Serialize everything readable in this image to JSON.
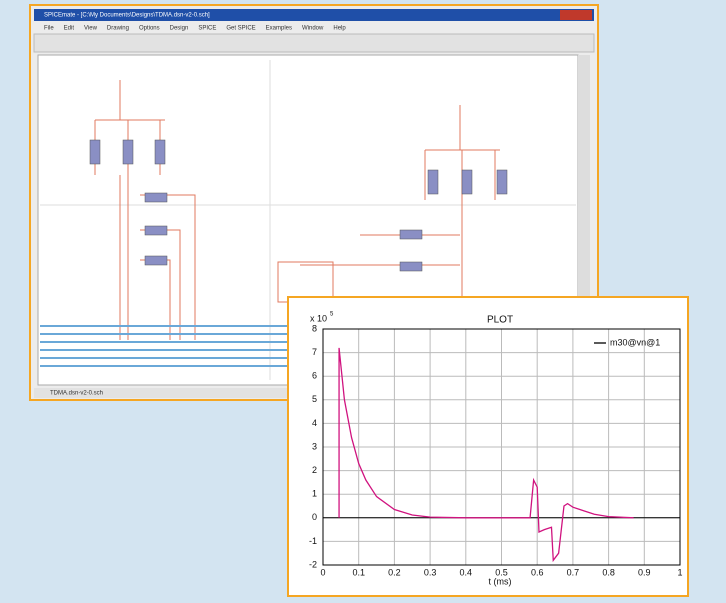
{
  "window": {
    "title": "SPICEmate - [C:\\My Documents\\Designs\\TDMA.dsn-v2-0.sch]",
    "menu": [
      "File",
      "Edit",
      "View",
      "Drawing",
      "Options",
      "Design",
      "SPICE",
      "Get SPICE",
      "Examples",
      "Window",
      "Help"
    ],
    "status": "TDMA.dsn-v2-0.sch"
  },
  "chart_data": {
    "type": "line",
    "title": "PLOT",
    "xlabel": "t (ms)",
    "y_multiplier_base": "x 10",
    "y_multiplier_exponent": "5",
    "x": [
      0.045,
      0.045,
      0.06,
      0.08,
      0.1,
      0.12,
      0.15,
      0.2,
      0.25,
      0.3,
      0.4,
      0.58,
      0.59,
      0.6,
      0.605,
      0.62,
      0.64,
      0.645,
      0.66,
      0.675,
      0.685,
      0.7,
      0.73,
      0.76,
      0.8,
      0.87
    ],
    "series": [
      {
        "name": "m30@vn@1",
        "color": "#d0137f",
        "values": [
          0,
          7.2,
          5.0,
          3.4,
          2.3,
          1.6,
          0.9,
          0.35,
          0.12,
          0.03,
          0,
          0,
          1.6,
          1.3,
          -0.6,
          -0.5,
          -0.4,
          -1.8,
          -1.5,
          0.5,
          0.6,
          0.45,
          0.3,
          0.15,
          0.05,
          0
        ]
      }
    ],
    "xlim": [
      0,
      1
    ],
    "xticks": [
      0,
      0.1,
      0.2,
      0.3,
      0.4,
      0.5,
      0.6,
      0.7,
      0.8,
      0.9,
      1
    ],
    "ylim": [
      -2,
      8
    ],
    "yticks": [
      -2,
      -1,
      0,
      1,
      2,
      3,
      4,
      5,
      6,
      7,
      8
    ],
    "grid": true,
    "legend": "upper right"
  }
}
